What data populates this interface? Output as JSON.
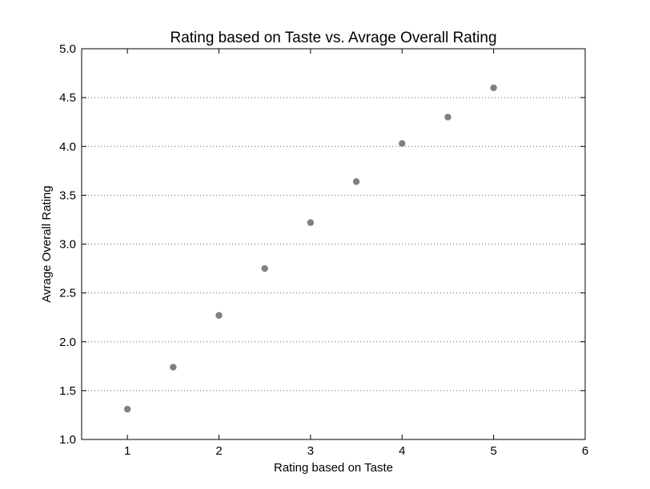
{
  "chart_data": {
    "type": "scatter",
    "title": "Rating based on Taste vs. Avrage Overall Rating",
    "xlabel": "Rating based on Taste",
    "ylabel": "Avrage Overall Rating",
    "xlim": [
      0.5,
      6
    ],
    "ylim": [
      1.0,
      5.0
    ],
    "xticks": [
      1,
      2,
      3,
      4,
      5,
      6
    ],
    "xtick_labels": [
      "1",
      "2",
      "3",
      "4",
      "5",
      "6"
    ],
    "yticks": [
      1.0,
      1.5,
      2.0,
      2.5,
      3.0,
      3.5,
      4.0,
      4.5,
      5.0
    ],
    "ytick_labels": [
      "1.0",
      "1.5",
      "2.0",
      "2.5",
      "3.0",
      "3.5",
      "4.0",
      "4.5",
      "5.0"
    ],
    "grid": "horizontal-dotted",
    "point_color": "#808080",
    "points": [
      {
        "x": 1.0,
        "y": 1.31
      },
      {
        "x": 1.5,
        "y": 1.74
      },
      {
        "x": 2.0,
        "y": 2.27
      },
      {
        "x": 2.5,
        "y": 2.75
      },
      {
        "x": 3.0,
        "y": 3.22
      },
      {
        "x": 3.5,
        "y": 3.64
      },
      {
        "x": 4.0,
        "y": 4.03
      },
      {
        "x": 4.5,
        "y": 4.3
      },
      {
        "x": 5.0,
        "y": 4.6
      }
    ]
  }
}
